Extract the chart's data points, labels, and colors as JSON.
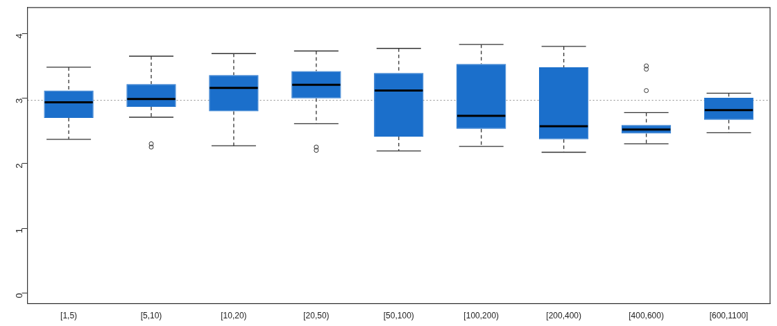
{
  "chart_data": {
    "type": "box",
    "categories": [
      "[1,5)",
      "[5,10)",
      "[10,20)",
      "[20,50)",
      "[50,100)",
      "[100,200)",
      "[200,400)",
      "[400,600)",
      "[600,1100]"
    ],
    "color": "#1b6fcb",
    "boxes": [
      {
        "low": 2.37,
        "q1": 2.7,
        "median": 2.94,
        "q3": 3.12,
        "high": 3.48
      },
      {
        "low": 2.71,
        "q1": 2.87,
        "median": 2.99,
        "q3": 3.22,
        "high": 3.65,
        "outliers": [
          2.3,
          2.25
        ]
      },
      {
        "low": 2.27,
        "q1": 2.8,
        "median": 3.16,
        "q3": 3.36,
        "high": 3.69
      },
      {
        "low": 2.61,
        "q1": 3.0,
        "median": 3.21,
        "q3": 3.42,
        "high": 3.73,
        "outliers": [
          2.25,
          2.2
        ]
      },
      {
        "low": 2.19,
        "q1": 2.41,
        "median": 3.12,
        "q3": 3.39,
        "high": 3.77
      },
      {
        "low": 2.26,
        "q1": 2.53,
        "median": 2.73,
        "q3": 3.53,
        "high": 3.83
      },
      {
        "low": 2.17,
        "q1": 2.37,
        "median": 2.57,
        "q3": 3.48,
        "high": 3.8
      },
      {
        "low": 2.3,
        "q1": 2.46,
        "median": 2.52,
        "q3": 2.59,
        "high": 2.78,
        "outliers": [
          3.5,
          3.45,
          3.12
        ]
      },
      {
        "low": 2.47,
        "q1": 2.67,
        "median": 2.82,
        "q3": 3.01,
        "high": 3.08
      }
    ],
    "ylim": [
      -0.16,
      4.4
    ],
    "yticks": [
      0,
      1,
      2,
      3,
      4
    ],
    "ref_lines": [
      {
        "axis": "y",
        "value": 2.97,
        "color": "#888888",
        "line_style": "dotted"
      }
    ],
    "grid": false,
    "legend": false
  }
}
